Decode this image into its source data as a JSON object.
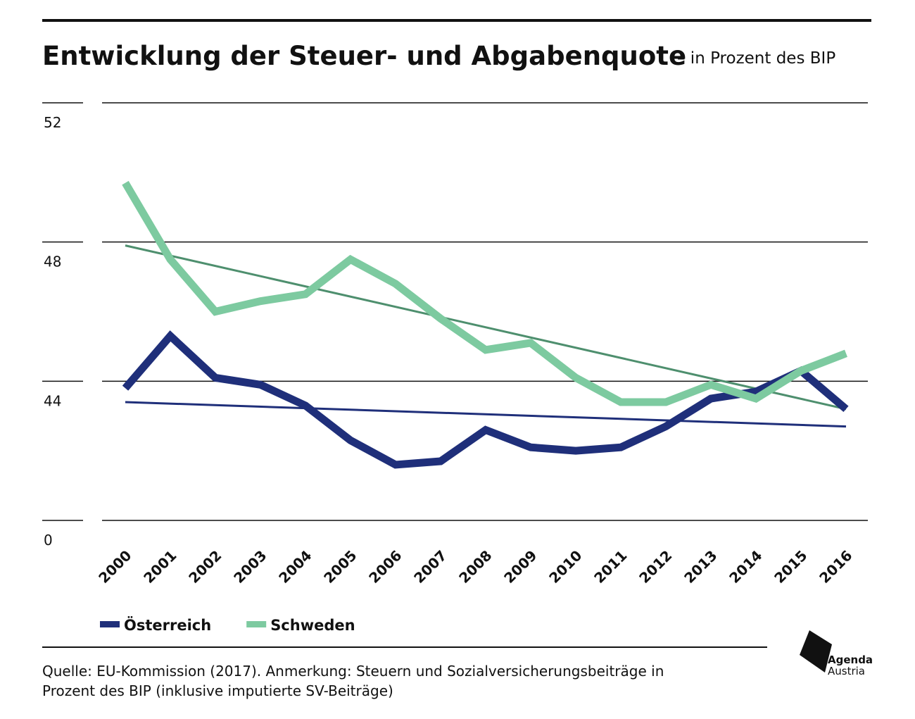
{
  "chart_data": {
    "type": "line",
    "title": "Entwicklung der Steuer- und Abgabenquote",
    "subtitle": "– in Prozent des BIP",
    "categories": [
      "2000",
      "2001",
      "2002",
      "2003",
      "2004",
      "2005",
      "2006",
      "2007",
      "2008",
      "2009",
      "2010",
      "2011",
      "2012",
      "2013",
      "2014",
      "2015",
      "2016"
    ],
    "series": [
      {
        "name": "Österreich",
        "color": "#1f2f7a",
        "trend_color": "#1f2f7a",
        "values": [
          43.8,
          45.3,
          44.1,
          43.9,
          43.3,
          42.3,
          41.6,
          41.7,
          42.6,
          42.1,
          42.0,
          42.1,
          42.7,
          43.5,
          43.7,
          44.3,
          43.2
        ],
        "trend": [
          43.4,
          42.7
        ]
      },
      {
        "name": "Schweden",
        "color": "#7dcaa0",
        "trend_color": "#4e8f6e",
        "values": [
          49.7,
          47.5,
          46.0,
          46.3,
          46.5,
          47.5,
          46.8,
          45.8,
          44.9,
          45.1,
          44.1,
          43.4,
          43.4,
          43.9,
          43.5,
          44.3,
          44.8
        ],
        "trend": [
          47.9,
          43.2
        ]
      }
    ],
    "ylim": [
      40,
      52
    ],
    "yticks": [
      52,
      48,
      44,
      {
        "value": 40,
        "label": "0"
      }
    ],
    "grid": true,
    "note": [
      "Quelle: EU-Kommission (2017). Anmerkung: Steuern und Sozialversicherungsbeiträge in",
      "Prozent des BIP (inklusive imputierte SV-Beiträge)"
    ],
    "logo": [
      "Agenda",
      "Austria"
    ]
  }
}
